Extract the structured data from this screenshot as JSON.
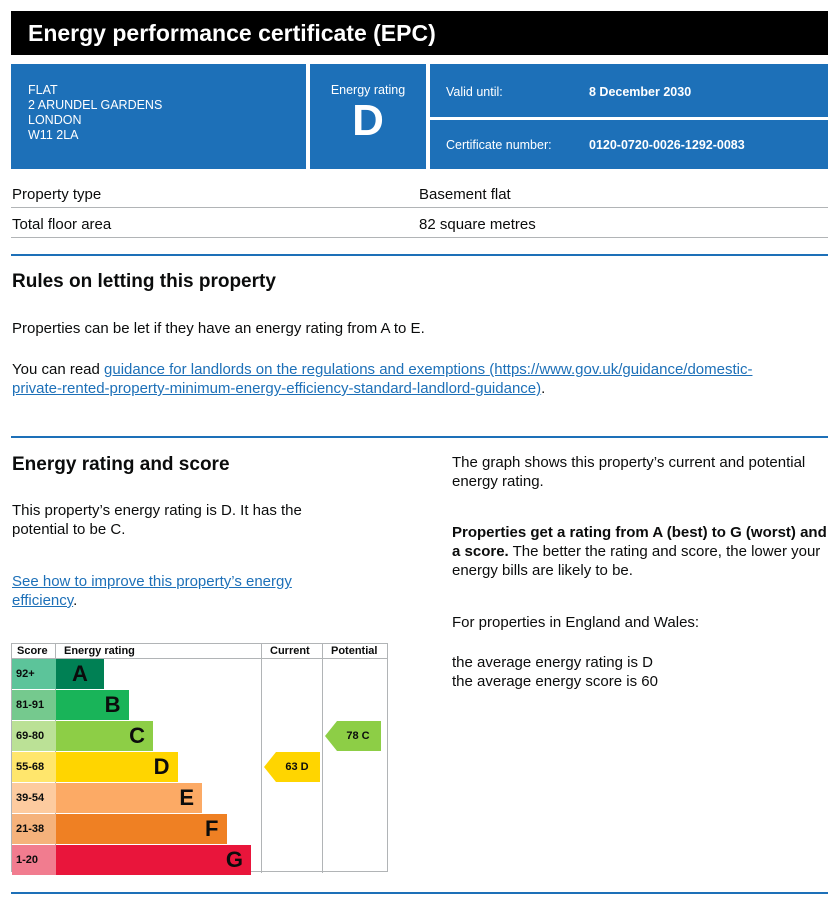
{
  "title": "Energy performance certificate (EPC)",
  "address": {
    "line1": "FLAT",
    "line2": "2 ARUNDEL GARDENS",
    "line3": "LONDON",
    "line4": "W11 2LA"
  },
  "rating": {
    "label": "Energy rating",
    "value": "D"
  },
  "valid_until": {
    "label": "Valid until:",
    "value": "8 December 2030"
  },
  "certificate": {
    "label": "Certificate number:",
    "value": "0120-0720-0026-1292-0083"
  },
  "property": {
    "type_label": "Property type",
    "type_value": "Basement flat",
    "area_label": "Total floor area",
    "area_value": "82 square metres"
  },
  "letting": {
    "heading": "Rules on letting this property",
    "para1": "Properties can be let if they have an energy rating from A to E.",
    "para2_prefix": "You can read ",
    "link1": "guidance for landlords on the regulations and exemptions",
    "link2": "(https://www.gov.uk/guidance/domestic-private-rented-property-minimum-energy-efficiency-standard-landlord-guidance)",
    "para2_suffix": "."
  },
  "score_section": {
    "heading": "Energy rating and score",
    "para1": "This property’s energy rating is D. It has the potential to be C.",
    "improve_link": "See how to improve this property’s energy efficiency",
    "improve_suffix": ".",
    "right_para1": "The graph shows this property’s current and potential energy rating.",
    "right_bold": "Properties get a rating from A (best) to G (worst) and a score.",
    "right_para2_rest": " The better the rating and score, the lower your energy bills are likely to be.",
    "right_para3": "For properties in England and Wales:",
    "avg_rating": "the average energy rating is D",
    "avg_score": "the average energy score is 60"
  },
  "chart_data": {
    "type": "table",
    "headers": {
      "score": "Score",
      "rating": "Energy rating",
      "current": "Current",
      "potential": "Potential"
    },
    "bands": [
      {
        "score": "92+",
        "letter": "A",
        "color": "#008054",
        "score_bg": "#5cc49a"
      },
      {
        "score": "81-91",
        "letter": "B",
        "color": "#19b459",
        "score_bg": "#75c98e"
      },
      {
        "score": "69-80",
        "letter": "C",
        "color": "#8dce46",
        "score_bg": "#bbe196"
      },
      {
        "score": "55-68",
        "letter": "D",
        "color": "#ffd500",
        "score_bg": "#ffe66c"
      },
      {
        "score": "39-54",
        "letter": "E",
        "color": "#fcaa65",
        "score_bg": "#fdcb9f"
      },
      {
        "score": "21-38",
        "letter": "F",
        "color": "#ef8023",
        "score_bg": "#f5b27b"
      },
      {
        "score": "1-20",
        "letter": "G",
        "color": "#e9153b",
        "score_bg": "#f17c8f"
      }
    ],
    "current": {
      "score": 63,
      "letter": "D",
      "label": "63  D",
      "color": "#ffd500"
    },
    "potential": {
      "score": 78,
      "letter": "C",
      "label": "78  C",
      "color": "#8dce46"
    }
  }
}
